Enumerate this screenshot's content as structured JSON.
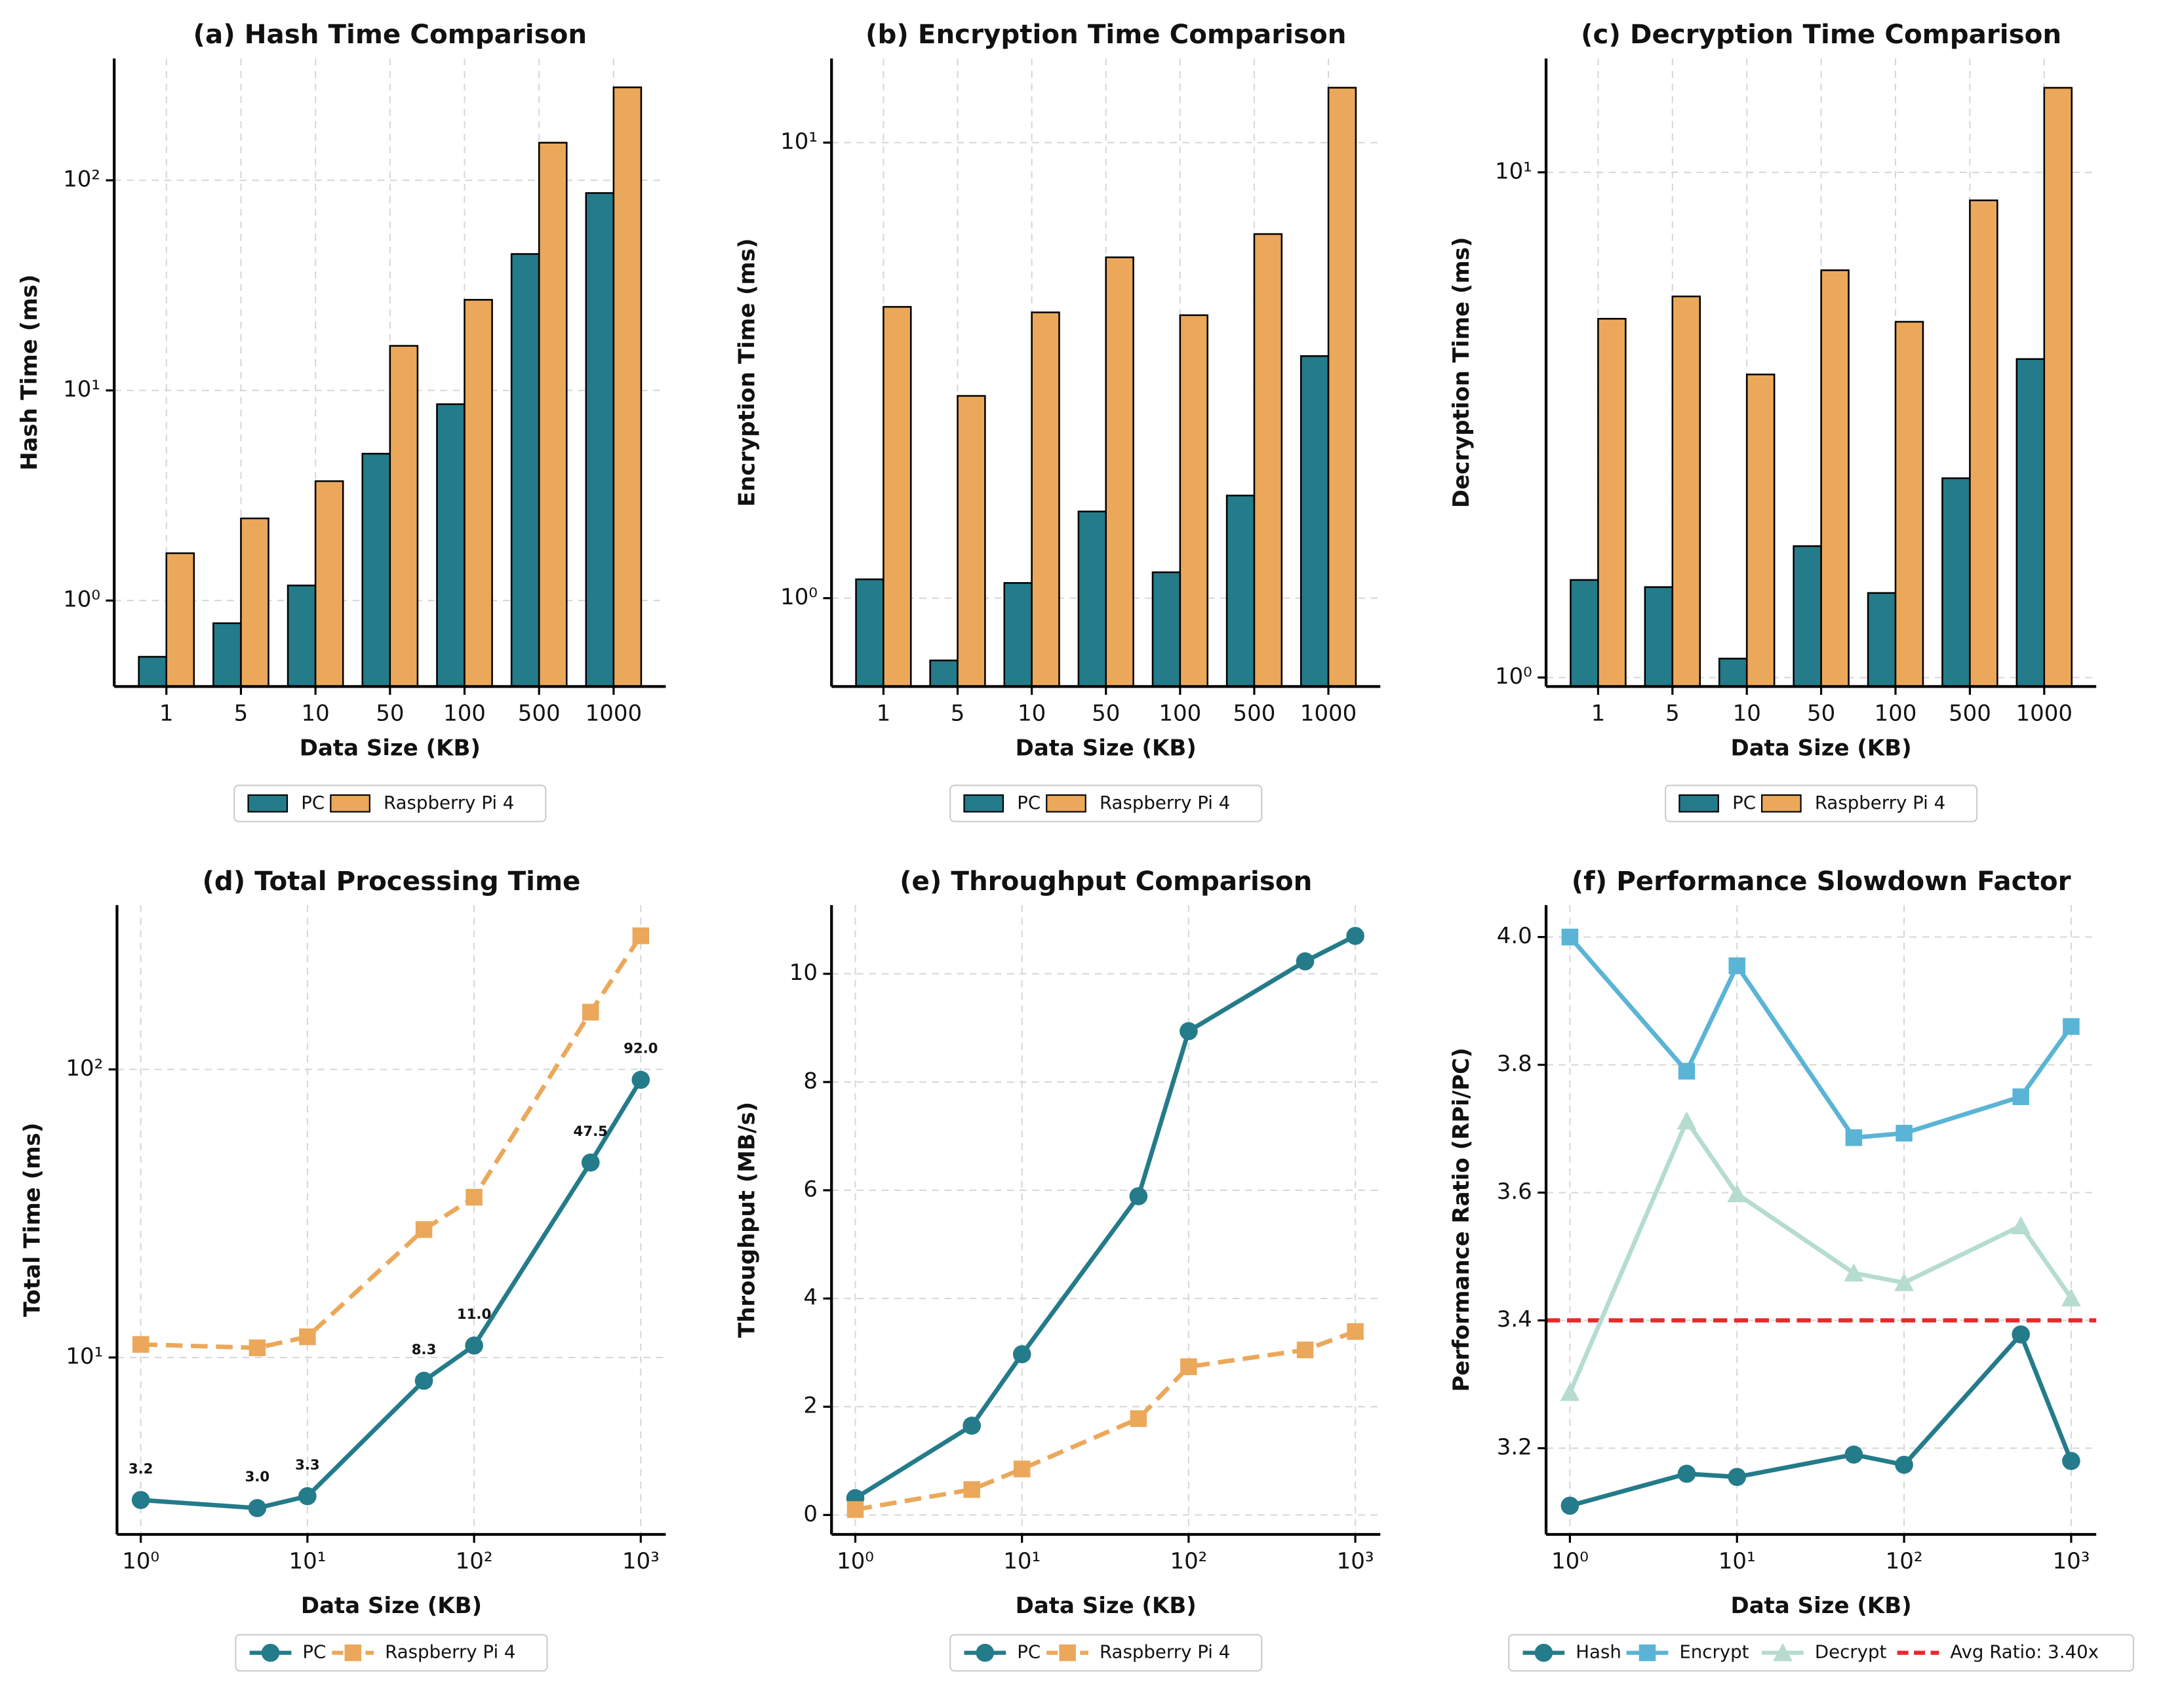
{
  "chart_data": [
    {
      "type": "bar",
      "title": "(a) Hash Time Comparison",
      "x_label": "Data Size (KB)",
      "y_label": "Hash Time (ms)",
      "categories": [
        "1",
        "5",
        "10",
        "50",
        "100",
        "500",
        "1000"
      ],
      "y_scale": "log",
      "grid": true,
      "ylim": [
        0.39,
        380
      ],
      "yticks": [
        {
          "value": 1,
          "label": "10⁰"
        },
        {
          "value": 10,
          "label": "10¹"
        },
        {
          "value": 100,
          "label": "10²"
        }
      ],
      "series": [
        {
          "name": "PC",
          "color": "#247b8a",
          "values": [
            0.54,
            0.78,
            1.18,
            5.0,
            8.6,
            44.6,
            87
          ]
        },
        {
          "name": "Raspberry Pi 4",
          "color": "#eba85a",
          "values": [
            1.68,
            2.46,
            3.7,
            16.3,
            27,
            151,
            277
          ]
        }
      ]
    },
    {
      "type": "bar",
      "title": "(b) Encryption Time Comparison",
      "x_label": "Data Size (KB)",
      "y_label": "Encryption Time (ms)",
      "categories": [
        "1",
        "5",
        "10",
        "50",
        "100",
        "500",
        "1000"
      ],
      "y_scale": "log",
      "grid": true,
      "ylim": [
        0.64,
        15.3
      ],
      "yticks": [
        {
          "value": 1,
          "label": "10⁰"
        },
        {
          "value": 10,
          "label": "10¹"
        }
      ],
      "series": [
        {
          "name": "PC",
          "color": "#247b8a",
          "values": [
            1.1,
            0.73,
            1.08,
            1.55,
            1.14,
            1.68,
            3.4
          ]
        },
        {
          "name": "Raspberry Pi 4",
          "color": "#eba85a",
          "values": [
            4.36,
            2.78,
            4.24,
            5.6,
            4.18,
            6.3,
            13.2
          ]
        }
      ]
    },
    {
      "type": "bar",
      "title": "(c) Decryption Time Comparison",
      "x_label": "Data Size (KB)",
      "y_label": "Decryption Time (ms)",
      "categories": [
        "1",
        "5",
        "10",
        "50",
        "100",
        "500",
        "1000"
      ],
      "y_scale": "log",
      "grid": true,
      "ylim": [
        0.96,
        16.8
      ],
      "yticks": [
        {
          "value": 1,
          "label": "10⁰"
        },
        {
          "value": 10,
          "label": "10¹"
        }
      ],
      "series": [
        {
          "name": "PC",
          "color": "#247b8a",
          "values": [
            1.56,
            1.51,
            1.09,
            1.82,
            1.47,
            2.48,
            4.27
          ]
        },
        {
          "name": "Raspberry Pi 4",
          "color": "#eba85a",
          "values": [
            5.13,
            5.68,
            3.98,
            6.4,
            5.06,
            8.8,
            14.7
          ]
        }
      ]
    },
    {
      "type": "line",
      "title": "(d) Total Processing Time",
      "x_label": "Data Size (KB)",
      "y_label": "Total Time (ms)",
      "x": [
        1,
        5,
        10,
        50,
        100,
        500,
        1000
      ],
      "x_scale": "log",
      "y_scale": "log",
      "grid": true,
      "xlim": [
        0.72,
        1413
      ],
      "xticks": [
        {
          "value": 1,
          "label": "10⁰"
        },
        {
          "value": 10,
          "label": "10¹"
        },
        {
          "value": 100,
          "label": "10²"
        },
        {
          "value": 1000,
          "label": "10³"
        }
      ],
      "ylim": [
        2.43,
        372
      ],
      "yticks": [
        {
          "value": 10,
          "label": "10¹"
        },
        {
          "value": 100,
          "label": "10²"
        }
      ],
      "series": [
        {
          "name": "PC",
          "color": "#247b8a",
          "marker": "circle",
          "dashed": false,
          "values": [
            3.2,
            3.0,
            3.3,
            8.3,
            11.0,
            47.5,
            92.0
          ],
          "value_labels": [
            "3.2",
            "3.0",
            "3.3",
            "8.3",
            "11.0",
            "47.5",
            "92.0"
          ]
        },
        {
          "name": "Raspberry Pi 4",
          "color": "#eba85a",
          "marker": "square",
          "dashed": true,
          "values": [
            11.1,
            10.8,
            11.8,
            27.8,
            36,
            158,
            291
          ]
        }
      ]
    },
    {
      "type": "line",
      "title": "(e) Throughput Comparison",
      "x_label": "Data Size (KB)",
      "y_label": "Throughput (MB/s)",
      "x": [
        1,
        5,
        10,
        50,
        100,
        500,
        1000
      ],
      "x_scale": "log",
      "grid": true,
      "xlim": [
        0.72,
        1413
      ],
      "xticks": [
        {
          "value": 1,
          "label": "10⁰"
        },
        {
          "value": 10,
          "label": "10¹"
        },
        {
          "value": 100,
          "label": "10²"
        },
        {
          "value": 1000,
          "label": "10³"
        }
      ],
      "ylim": [
        -0.36,
        11.27
      ],
      "yticks": [
        0,
        2,
        4,
        6,
        8,
        10
      ],
      "series": [
        {
          "name": "PC",
          "color": "#247b8a",
          "marker": "circle",
          "dashed": false,
          "values": [
            0.31,
            1.65,
            2.97,
            5.89,
            8.94,
            10.23,
            10.7
          ]
        },
        {
          "name": "Raspberry Pi 4",
          "color": "#eba85a",
          "marker": "square",
          "dashed": true,
          "values": [
            0.1,
            0.47,
            0.85,
            1.78,
            2.74,
            3.05,
            3.39
          ]
        }
      ]
    },
    {
      "type": "line",
      "title": "(f) Performance Slowdown Factor",
      "x_label": "Data Size (KB)",
      "y_label": "Performance Ratio (RPi/PC)",
      "x": [
        1,
        5,
        10,
        50,
        100,
        500,
        1000
      ],
      "x_scale": "log",
      "grid": true,
      "xlim": [
        0.72,
        1413
      ],
      "xticks": [
        {
          "value": 1,
          "label": "10⁰"
        },
        {
          "value": 10,
          "label": "10¹"
        },
        {
          "value": 100,
          "label": "10²"
        },
        {
          "value": 1000,
          "label": "10³"
        }
      ],
      "ylim": [
        3.065,
        4.05
      ],
      "yticks": [
        3.2,
        3.4,
        3.6,
        3.8,
        {
          "value": 4,
          "label": "4.0"
        }
      ],
      "series": [
        {
          "name": "Hash",
          "color": "#247b8a",
          "marker": "circle",
          "dashed": false,
          "values": [
            3.11,
            3.16,
            3.155,
            3.19,
            3.174,
            3.378,
            3.18
          ]
        },
        {
          "name": "Encrypt",
          "color": "#5ab4d6",
          "marker": "square",
          "dashed": false,
          "values": [
            4.0,
            3.79,
            3.955,
            3.686,
            3.693,
            3.75,
            3.86
          ]
        },
        {
          "name": "Decrypt",
          "color": "#b6dccf",
          "marker": "triangle",
          "dashed": false,
          "values": [
            3.287,
            3.712,
            3.598,
            3.474,
            3.459,
            3.548,
            3.435
          ]
        }
      ],
      "reference_line": {
        "value": 3.4,
        "label": "Avg Ratio: 3.40x",
        "color": "#e8282b"
      }
    }
  ]
}
